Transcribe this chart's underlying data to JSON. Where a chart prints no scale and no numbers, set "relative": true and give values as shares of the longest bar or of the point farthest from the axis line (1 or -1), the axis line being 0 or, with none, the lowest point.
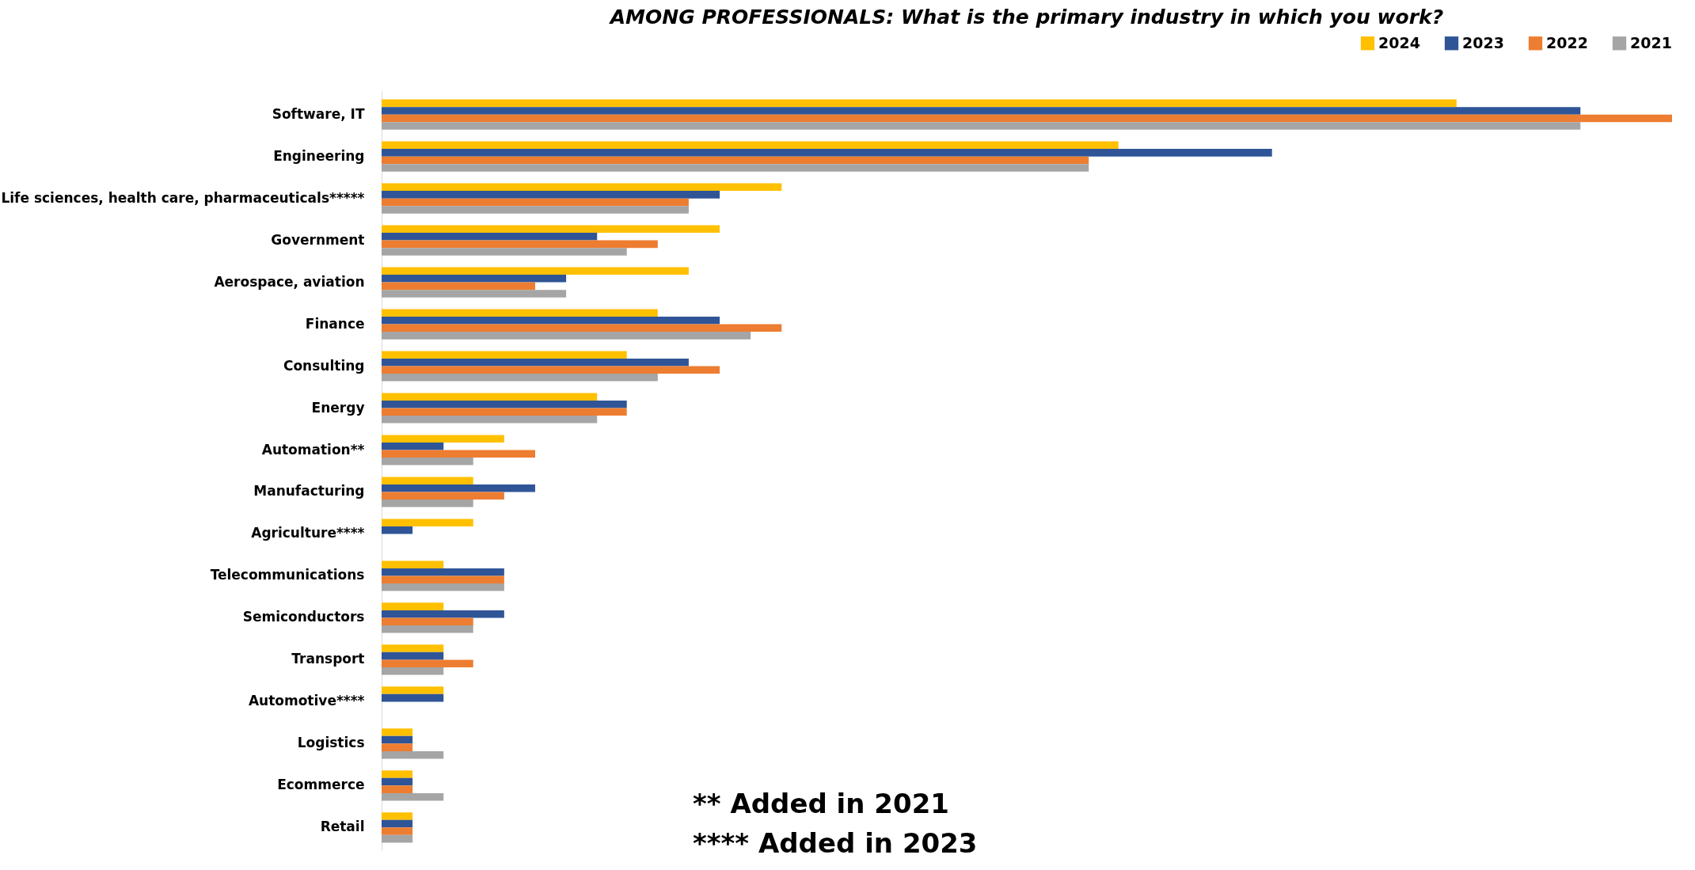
{
  "chart_data": {
    "type": "bar",
    "orientation": "horizontal",
    "relative": true,
    "title": "AMONG PROFESSIONALS: What is the primary industry in which you work?",
    "legend": "top",
    "categories": [
      "Software, IT",
      "Engineering",
      "Life sciences, health care, pharmaceuticals*****",
      "Government",
      "Aerospace, aviation",
      "Finance",
      "Consulting",
      "Energy",
      "Automation**",
      "Manufacturing",
      "Agriculture****",
      "Telecommunications",
      "Semiconductors",
      "Transport",
      "Automotive****",
      "Logistics",
      "Ecommerce",
      "Retail"
    ],
    "series": [
      {
        "name": "2024",
        "color": "#ffc000",
        "values": [
          0.833,
          0.571,
          0.31,
          0.262,
          0.238,
          0.214,
          0.19,
          0.167,
          0.095,
          0.071,
          0.071,
          0.048,
          0.048,
          0.048,
          0.048,
          0.024,
          0.024,
          0.024
        ]
      },
      {
        "name": "2023",
        "color": "#2f5597",
        "values": [
          0.929,
          0.69,
          0.262,
          0.167,
          0.143,
          0.262,
          0.238,
          0.19,
          0.048,
          0.119,
          0.024,
          0.095,
          0.095,
          0.048,
          0.048,
          0.024,
          0.024,
          0.024
        ]
      },
      {
        "name": "2022",
        "color": "#ed7d31",
        "values": [
          1,
          0.548,
          0.238,
          0.214,
          0.119,
          0.31,
          0.262,
          0.19,
          0.119,
          0.095,
          null,
          0.095,
          0.071,
          0.071,
          null,
          0.024,
          0.024,
          0.024
        ]
      },
      {
        "name": "2021",
        "color": "#a5a5a5",
        "values": [
          0.929,
          0.548,
          0.238,
          0.19,
          0.143,
          0.286,
          0.214,
          0.167,
          0.071,
          0.071,
          null,
          0.095,
          0.071,
          0.048,
          null,
          0.048,
          0.048,
          0.024
        ]
      }
    ],
    "annotations": [
      "** Added in 2021",
      "**** Added in 2023"
    ]
  }
}
